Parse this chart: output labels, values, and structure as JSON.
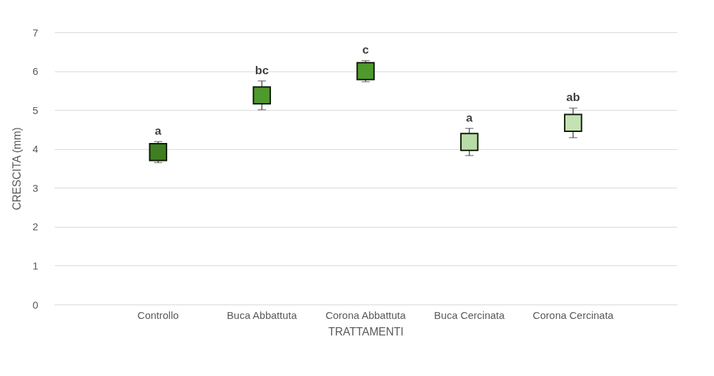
{
  "chart_data": {
    "type": "scatter",
    "xlabel": "TRATTAMENTI",
    "ylabel": "CRESCITA (mm)",
    "categories": [
      "Controllo",
      "Buca Abbattuta",
      "Corona Abbattuta",
      "Buca Cercinata",
      "Corona Cercinata"
    ],
    "values": [
      3.92,
      5.38,
      6.0,
      4.18,
      4.67
    ],
    "errors": [
      0.27,
      0.37,
      0.27,
      0.35,
      0.38
    ],
    "colors": [
      "#3f7f22",
      "#4f9a2c",
      "#4f9a2c",
      "#b9dca6",
      "#c5e2b4"
    ],
    "marker": "square",
    "ylim": [
      0,
      7
    ],
    "yticks": [
      0,
      1,
      2,
      3,
      4,
      5,
      6,
      7
    ],
    "grid": "y",
    "annotations": [
      {
        "text": "a",
        "x": "Controllo",
        "y": 4.19
      },
      {
        "text": "bc",
        "x": "Buca Abbattuta",
        "y": 5.75
      },
      {
        "text": "c",
        "x": "Corona Abbattuta",
        "y": 6.27
      },
      {
        "text": "a",
        "x": "Buca Cercinata",
        "y": 4.53
      },
      {
        "text": "ab",
        "x": "Corona Cercinata",
        "y": 5.05
      }
    ]
  }
}
